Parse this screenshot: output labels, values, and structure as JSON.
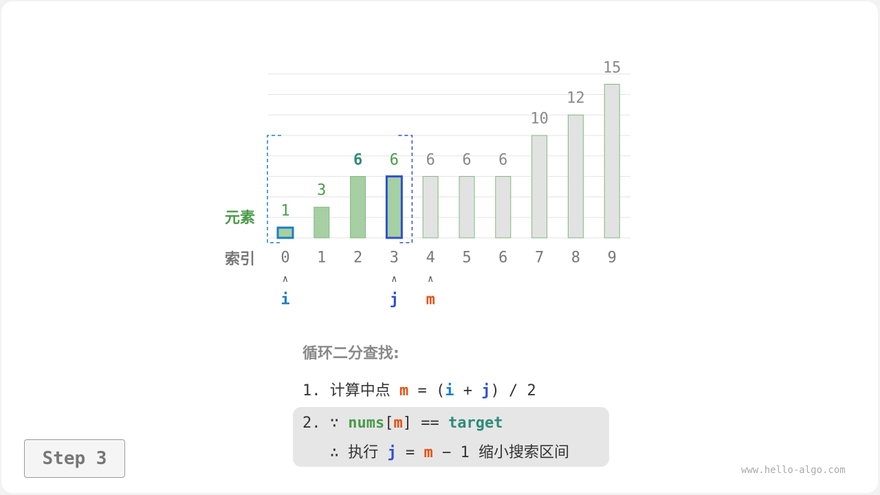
{
  "diagram": {
    "row_labels": {
      "elements": "元素",
      "indices": "索引"
    },
    "values": [
      1,
      3,
      6,
      6,
      6,
      6,
      6,
      10,
      12,
      15
    ],
    "indices": [
      "0",
      "1",
      "2",
      "3",
      "4",
      "5",
      "6",
      "7",
      "8",
      "9"
    ],
    "value_labels": [
      "1",
      "3",
      "6",
      "6",
      "6",
      "6",
      "6",
      "10",
      "12",
      "15"
    ],
    "active_range": [
      0,
      3
    ],
    "pointers": [
      {
        "name": "i",
        "index": 0
      },
      {
        "name": "j",
        "index": 3
      },
      {
        "name": "m",
        "index": 4
      }
    ],
    "pointer_arrow": "∧",
    "colors": {
      "active_bar": "#a6cfa3",
      "inactive_bar": "#e2e2e2",
      "i": "#1a7fc4",
      "j": "#2f4fd0",
      "m": "#e8500f",
      "green": "#4a9a4a",
      "teal": "#2e8b7a"
    }
  },
  "explanation": {
    "title": "循环二分查找:",
    "step1": {
      "num": "1.",
      "text": "计算中点",
      "m": "m",
      "eq": "=",
      "lp": "(",
      "i": "i",
      "plus": "+",
      "j": "j",
      "rp": ")",
      "div": "/ 2"
    },
    "step2": {
      "num": "2.",
      "because": "∵",
      "nums": "nums",
      "lb": "[",
      "m": "m",
      "rb": "]",
      "eqeq": "==",
      "target": "target",
      "therefore": "∴",
      "exec": "执行",
      "j": "j",
      "eq": "=",
      "m2": "m",
      "minus": "− 1",
      "rest": "缩小搜索区间"
    }
  },
  "step_button": "Step 3",
  "watermark": "www.hello-algo.com"
}
